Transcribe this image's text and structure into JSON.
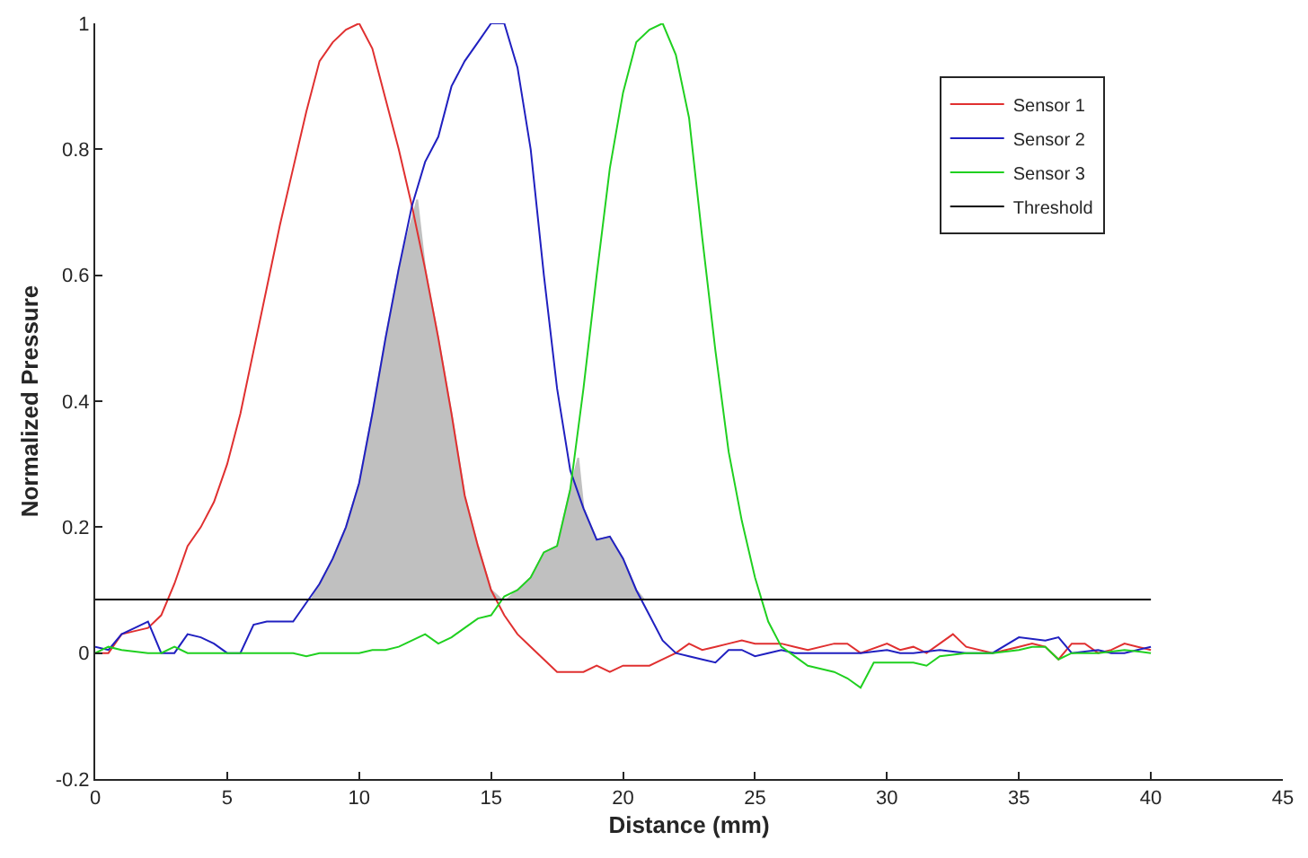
{
  "chart_data": {
    "type": "line",
    "xlabel": "Distance (mm)",
    "ylabel": "Normalized Pressure",
    "xlim": [
      0,
      45
    ],
    "xticks": [
      0,
      5,
      10,
      15,
      20,
      25,
      30,
      35,
      40,
      45
    ],
    "ylim": [
      -0.2,
      1
    ],
    "yticks": [
      -0.2,
      0,
      0.2,
      0.4,
      0.6,
      0.8,
      1
    ],
    "legend": "top right",
    "line_style": "solid",
    "marker": "none",
    "series": [
      {
        "type": "area",
        "color": "#c0c0c0",
        "x": [
          8.2,
          8.5,
          9,
          9.5,
          10,
          10.5,
          11,
          11.5,
          12.2,
          12.5,
          13,
          13.5,
          14,
          14.5,
          15,
          15.4,
          15.6,
          16,
          16.5,
          17,
          17.5,
          18,
          18.3,
          18.5,
          19,
          19.5,
          20,
          20.5,
          20.8,
          8.2
        ],
        "values": [
          0.085,
          0.11,
          0.15,
          0.2,
          0.27,
          0.38,
          0.5,
          0.61,
          0.72,
          0.61,
          0.5,
          0.38,
          0.25,
          0.17,
          0.1,
          0.085,
          0.085,
          0.1,
          0.12,
          0.16,
          0.17,
          0.26,
          0.31,
          0.23,
          0.18,
          0.185,
          0.15,
          0.1,
          0.085,
          0.085
        ]
      },
      {
        "name": "Sensor 1",
        "color": "#e03030",
        "x": [
          0,
          0.5,
          1,
          1.5,
          2,
          2.5,
          3,
          3.5,
          4,
          4.5,
          5,
          5.5,
          6,
          6.5,
          7,
          7.5,
          8,
          8.5,
          9,
          9.5,
          10,
          10.5,
          11,
          11.5,
          12,
          12.5,
          13,
          13.5,
          14,
          14.5,
          15,
          15.5,
          16,
          16.5,
          17,
          17.5,
          18,
          18.5,
          19,
          19.5,
          20,
          20.5,
          21,
          21.5,
          22,
          22.5,
          23,
          23.5,
          24,
          24.5,
          25,
          25.5,
          26,
          26.5,
          27,
          28,
          28.5,
          29,
          30,
          30.5,
          31,
          31.5,
          32.5,
          33,
          34,
          34.5,
          35,
          35.5,
          36,
          36.5,
          37,
          37.5,
          38,
          38.5,
          39,
          39.5,
          40
        ],
        "values": [
          0,
          0,
          0.03,
          0.035,
          0.04,
          0.06,
          0.11,
          0.17,
          0.2,
          0.24,
          0.3,
          0.38,
          0.48,
          0.58,
          0.68,
          0.77,
          0.86,
          0.94,
          0.97,
          0.99,
          1.0,
          0.96,
          0.88,
          0.8,
          0.71,
          0.61,
          0.5,
          0.38,
          0.25,
          0.17,
          0.1,
          0.06,
          0.03,
          0.01,
          -0.01,
          -0.03,
          -0.03,
          -0.03,
          -0.02,
          -0.03,
          -0.02,
          -0.02,
          -0.02,
          -0.01,
          0.0,
          0.015,
          0.005,
          0.01,
          0.015,
          0.02,
          0.015,
          0.015,
          0.015,
          0.01,
          0.005,
          0.015,
          0.015,
          0.0,
          0.015,
          0.005,
          0.01,
          0.0,
          0.03,
          0.01,
          0.0,
          0.005,
          0.01,
          0.015,
          0.01,
          -0.01,
          0.015,
          0.015,
          0.0,
          0.005,
          0.015,
          0.01,
          0.005
        ]
      },
      {
        "name": "Sensor 2",
        "color": "#2020c0",
        "x": [
          0,
          0.5,
          1,
          1.5,
          2,
          2.5,
          3,
          3.5,
          4,
          4.5,
          5,
          5.5,
          6,
          6.5,
          7,
          7.5,
          8,
          8.5,
          9,
          9.5,
          10,
          10.5,
          11,
          11.5,
          12,
          12.5,
          13,
          13.5,
          14,
          14.5,
          15,
          15.5,
          16,
          16.5,
          17,
          17.5,
          18,
          18.5,
          19,
          19.5,
          20,
          20.5,
          21,
          21.5,
          22,
          22.5,
          23,
          23.5,
          24,
          24.5,
          25,
          25.5,
          26,
          26.5,
          27,
          28,
          29,
          30,
          30.5,
          31,
          32,
          33,
          34,
          35,
          36,
          36.5,
          37,
          38,
          38.5,
          39,
          40
        ],
        "values": [
          0.01,
          0.005,
          0.03,
          0.04,
          0.05,
          0.0,
          0.0,
          0.03,
          0.025,
          0.015,
          0.0,
          0.0,
          0.045,
          0.05,
          0.05,
          0.05,
          0.08,
          0.11,
          0.15,
          0.2,
          0.27,
          0.38,
          0.5,
          0.61,
          0.71,
          0.78,
          0.82,
          0.9,
          0.94,
          0.97,
          1.0,
          1.0,
          0.93,
          0.8,
          0.6,
          0.42,
          0.29,
          0.23,
          0.18,
          0.185,
          0.15,
          0.1,
          0.06,
          0.02,
          0.0,
          -0.005,
          -0.01,
          -0.015,
          0.005,
          0.005,
          -0.005,
          0.0,
          0.005,
          0.0,
          0.0,
          0.0,
          0.0,
          0.005,
          0.0,
          0.0,
          0.005,
          0.0,
          0.0,
          0.025,
          0.02,
          0.025,
          0.0,
          0.005,
          0.0,
          0.0,
          0.01
        ]
      },
      {
        "name": "Sensor 3",
        "color": "#20d020",
        "x": [
          0,
          0.5,
          1,
          2,
          2.5,
          3,
          3.5,
          4,
          5,
          6,
          7,
          7.5,
          8,
          8.5,
          9.5,
          10,
          10.5,
          11,
          11.5,
          12,
          12.5,
          13,
          13.5,
          14,
          14.5,
          15,
          15.5,
          16,
          16.5,
          17,
          17.5,
          18,
          18.5,
          19,
          19.5,
          20,
          20.5,
          21,
          21.5,
          22,
          22.5,
          23,
          23.5,
          24,
          24.5,
          25,
          25.5,
          26,
          26.5,
          27,
          27.5,
          28,
          28.5,
          29,
          29.5,
          30,
          31,
          31.5,
          32,
          33,
          34,
          35,
          35.5,
          36,
          36.5,
          37,
          38,
          39,
          40
        ],
        "values": [
          0.0,
          0.01,
          0.005,
          0.0,
          0.0,
          0.01,
          0.0,
          0.0,
          0.0,
          0.0,
          0.0,
          0.0,
          -0.005,
          0.0,
          0.0,
          0.0,
          0.005,
          0.005,
          0.01,
          0.02,
          0.03,
          0.015,
          0.025,
          0.04,
          0.055,
          0.06,
          0.09,
          0.1,
          0.12,
          0.16,
          0.17,
          0.26,
          0.42,
          0.6,
          0.77,
          0.89,
          0.97,
          0.99,
          1.0,
          0.95,
          0.85,
          0.66,
          0.48,
          0.32,
          0.21,
          0.12,
          0.05,
          0.01,
          -0.005,
          -0.02,
          -0.025,
          -0.03,
          -0.04,
          -0.055,
          -0.015,
          -0.015,
          -0.015,
          -0.02,
          -0.005,
          0.0,
          0.0,
          0.005,
          0.01,
          0.01,
          -0.01,
          0.0,
          0.0,
          0.005,
          0.0
        ]
      },
      {
        "name": "Threshold",
        "color": "#000000",
        "x": [
          0,
          40
        ],
        "values": [
          0.085,
          0.085
        ]
      }
    ]
  }
}
